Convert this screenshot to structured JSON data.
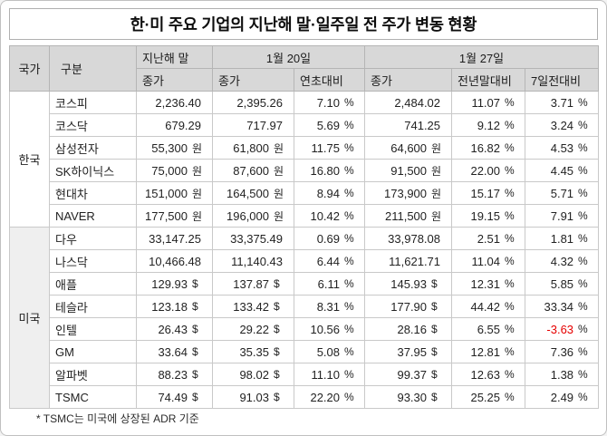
{
  "colors": {
    "negative": "#e60000",
    "header_bg": "#d8d8d8"
  },
  "chart_data": {
    "type": "table",
    "title": "한·미 주요 기업의 지난해 말·일주일 전 주가 변동 현황",
    "footnote": "* TSMC는 미국에 상장된 ADR 기준",
    "header": {
      "country": "국가",
      "category": "구분",
      "last_year_close": "지난해 말",
      "jan20": "1월 20일",
      "jan27": "1월 27일",
      "close": "종가",
      "vs_year_start": "연초대비",
      "vs_prev_year_end": "전년말대비",
      "vs_7days_ago": "7일전대비"
    },
    "groups": [
      {
        "country": "한국",
        "rows": [
          {
            "label": "코스피",
            "cells": [
              {
                "v": "2,236.40",
                "u": ""
              },
              {
                "v": "2,395.26",
                "u": ""
              },
              {
                "v": "7.10",
                "u": "%"
              },
              {
                "v": "2,484.02",
                "u": ""
              },
              {
                "v": "11.07",
                "u": "%"
              },
              {
                "v": "3.71",
                "u": "%"
              }
            ]
          },
          {
            "label": "코스닥",
            "cells": [
              {
                "v": "679.29",
                "u": ""
              },
              {
                "v": "717.97",
                "u": ""
              },
              {
                "v": "5.69",
                "u": "%"
              },
              {
                "v": "741.25",
                "u": ""
              },
              {
                "v": "9.12",
                "u": "%"
              },
              {
                "v": "3.24",
                "u": "%"
              }
            ]
          },
          {
            "label": "삼성전자",
            "cells": [
              {
                "v": "55,300",
                "u": "원"
              },
              {
                "v": "61,800",
                "u": "원"
              },
              {
                "v": "11.75",
                "u": "%"
              },
              {
                "v": "64,600",
                "u": "원"
              },
              {
                "v": "16.82",
                "u": "%"
              },
              {
                "v": "4.53",
                "u": "%"
              }
            ]
          },
          {
            "label": "SK하이닉스",
            "cells": [
              {
                "v": "75,000",
                "u": "원"
              },
              {
                "v": "87,600",
                "u": "원"
              },
              {
                "v": "16.80",
                "u": "%"
              },
              {
                "v": "91,500",
                "u": "원"
              },
              {
                "v": "22.00",
                "u": "%"
              },
              {
                "v": "4.45",
                "u": "%"
              }
            ]
          },
          {
            "label": "현대차",
            "cells": [
              {
                "v": "151,000",
                "u": "원"
              },
              {
                "v": "164,500",
                "u": "원"
              },
              {
                "v": "8.94",
                "u": "%"
              },
              {
                "v": "173,900",
                "u": "원"
              },
              {
                "v": "15.17",
                "u": "%"
              },
              {
                "v": "5.71",
                "u": "%"
              }
            ]
          },
          {
            "label": "NAVER",
            "cells": [
              {
                "v": "177,500",
                "u": "원"
              },
              {
                "v": "196,000",
                "u": "원"
              },
              {
                "v": "10.42",
                "u": "%"
              },
              {
                "v": "211,500",
                "u": "원"
              },
              {
                "v": "19.15",
                "u": "%"
              },
              {
                "v": "7.91",
                "u": "%"
              }
            ]
          }
        ]
      },
      {
        "country": "미국",
        "rows": [
          {
            "label": "다우",
            "cells": [
              {
                "v": "33,147.25",
                "u": ""
              },
              {
                "v": "33,375.49",
                "u": ""
              },
              {
                "v": "0.69",
                "u": "%"
              },
              {
                "v": "33,978.08",
                "u": ""
              },
              {
                "v": "2.51",
                "u": "%"
              },
              {
                "v": "1.81",
                "u": "%"
              }
            ]
          },
          {
            "label": "나스닥",
            "cells": [
              {
                "v": "10,466.48",
                "u": ""
              },
              {
                "v": "11,140.43",
                "u": ""
              },
              {
                "v": "6.44",
                "u": "%"
              },
              {
                "v": "11,621.71",
                "u": ""
              },
              {
                "v": "11.04",
                "u": "%"
              },
              {
                "v": "4.32",
                "u": "%"
              }
            ]
          },
          {
            "label": "애플",
            "cells": [
              {
                "v": "129.93",
                "u": "$"
              },
              {
                "v": "137.87",
                "u": "$"
              },
              {
                "v": "6.11",
                "u": "%"
              },
              {
                "v": "145.93",
                "u": "$"
              },
              {
                "v": "12.31",
                "u": "%"
              },
              {
                "v": "5.85",
                "u": "%"
              }
            ]
          },
          {
            "label": "테슬라",
            "cells": [
              {
                "v": "123.18",
                "u": "$"
              },
              {
                "v": "133.42",
                "u": "$"
              },
              {
                "v": "8.31",
                "u": "%"
              },
              {
                "v": "177.90",
                "u": "$"
              },
              {
                "v": "44.42",
                "u": "%"
              },
              {
                "v": "33.34",
                "u": "%"
              }
            ]
          },
          {
            "label": "인텔",
            "cells": [
              {
                "v": "26.43",
                "u": "$"
              },
              {
                "v": "29.22",
                "u": "$"
              },
              {
                "v": "10.56",
                "u": "%"
              },
              {
                "v": "28.16",
                "u": "$"
              },
              {
                "v": "6.55",
                "u": "%"
              },
              {
                "v": "-3.63",
                "u": "%",
                "neg": true
              }
            ]
          },
          {
            "label": "GM",
            "cells": [
              {
                "v": "33.64",
                "u": "$"
              },
              {
                "v": "35.35",
                "u": "$"
              },
              {
                "v": "5.08",
                "u": "%"
              },
              {
                "v": "37.95",
                "u": "$"
              },
              {
                "v": "12.81",
                "u": "%"
              },
              {
                "v": "7.36",
                "u": "%"
              }
            ]
          },
          {
            "label": "알파벳",
            "cells": [
              {
                "v": "88.23",
                "u": "$"
              },
              {
                "v": "98.02",
                "u": "$"
              },
              {
                "v": "11.10",
                "u": "%"
              },
              {
                "v": "99.37",
                "u": "$"
              },
              {
                "v": "12.63",
                "u": "%"
              },
              {
                "v": "1.38",
                "u": "%"
              }
            ]
          },
          {
            "label": "TSMC",
            "cells": [
              {
                "v": "74.49",
                "u": "$"
              },
              {
                "v": "91.03",
                "u": "$"
              },
              {
                "v": "22.20",
                "u": "%"
              },
              {
                "v": "93.30",
                "u": "$"
              },
              {
                "v": "25.25",
                "u": "%"
              },
              {
                "v": "2.49",
                "u": "%"
              }
            ]
          }
        ]
      }
    ]
  }
}
